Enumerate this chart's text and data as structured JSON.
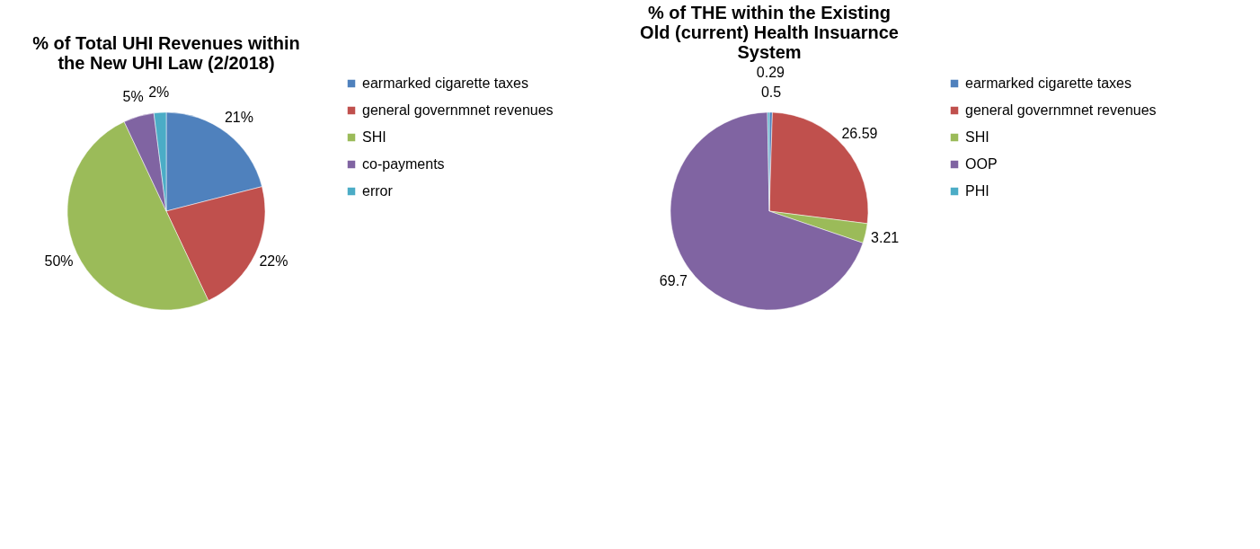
{
  "chart_data": [
    {
      "type": "pie",
      "title": "% of Total UHI Revenues within the New UHI Law (2/2018)",
      "categories": [
        "earmarked cigarette taxes",
        "general governmnet revenues",
        "SHI",
        "co-payments",
        "error"
      ],
      "values": [
        21,
        22,
        50,
        5,
        2
      ],
      "value_labels": [
        "21%",
        "22%",
        "50%",
        "5%",
        "2%"
      ],
      "colors": [
        "#4f81bd",
        "#c0504d",
        "#9bbb59",
        "#8064a2",
        "#4bacc6"
      ],
      "legend": "right"
    },
    {
      "type": "pie",
      "title": "% of THE within the Existing Old (current) Health Insuarnce System",
      "categories": [
        "earmarked cigarette taxes",
        "general governmnet revenues",
        "SHI",
        "OOP",
        "PHI"
      ],
      "values": [
        0.5,
        26.59,
        3.21,
        69.7,
        0.29
      ],
      "data_labels": true,
      "colors": [
        "#4f81bd",
        "#c0504d",
        "#9bbb59",
        "#8064a2",
        "#4bacc6"
      ],
      "legend": "right"
    }
  ]
}
